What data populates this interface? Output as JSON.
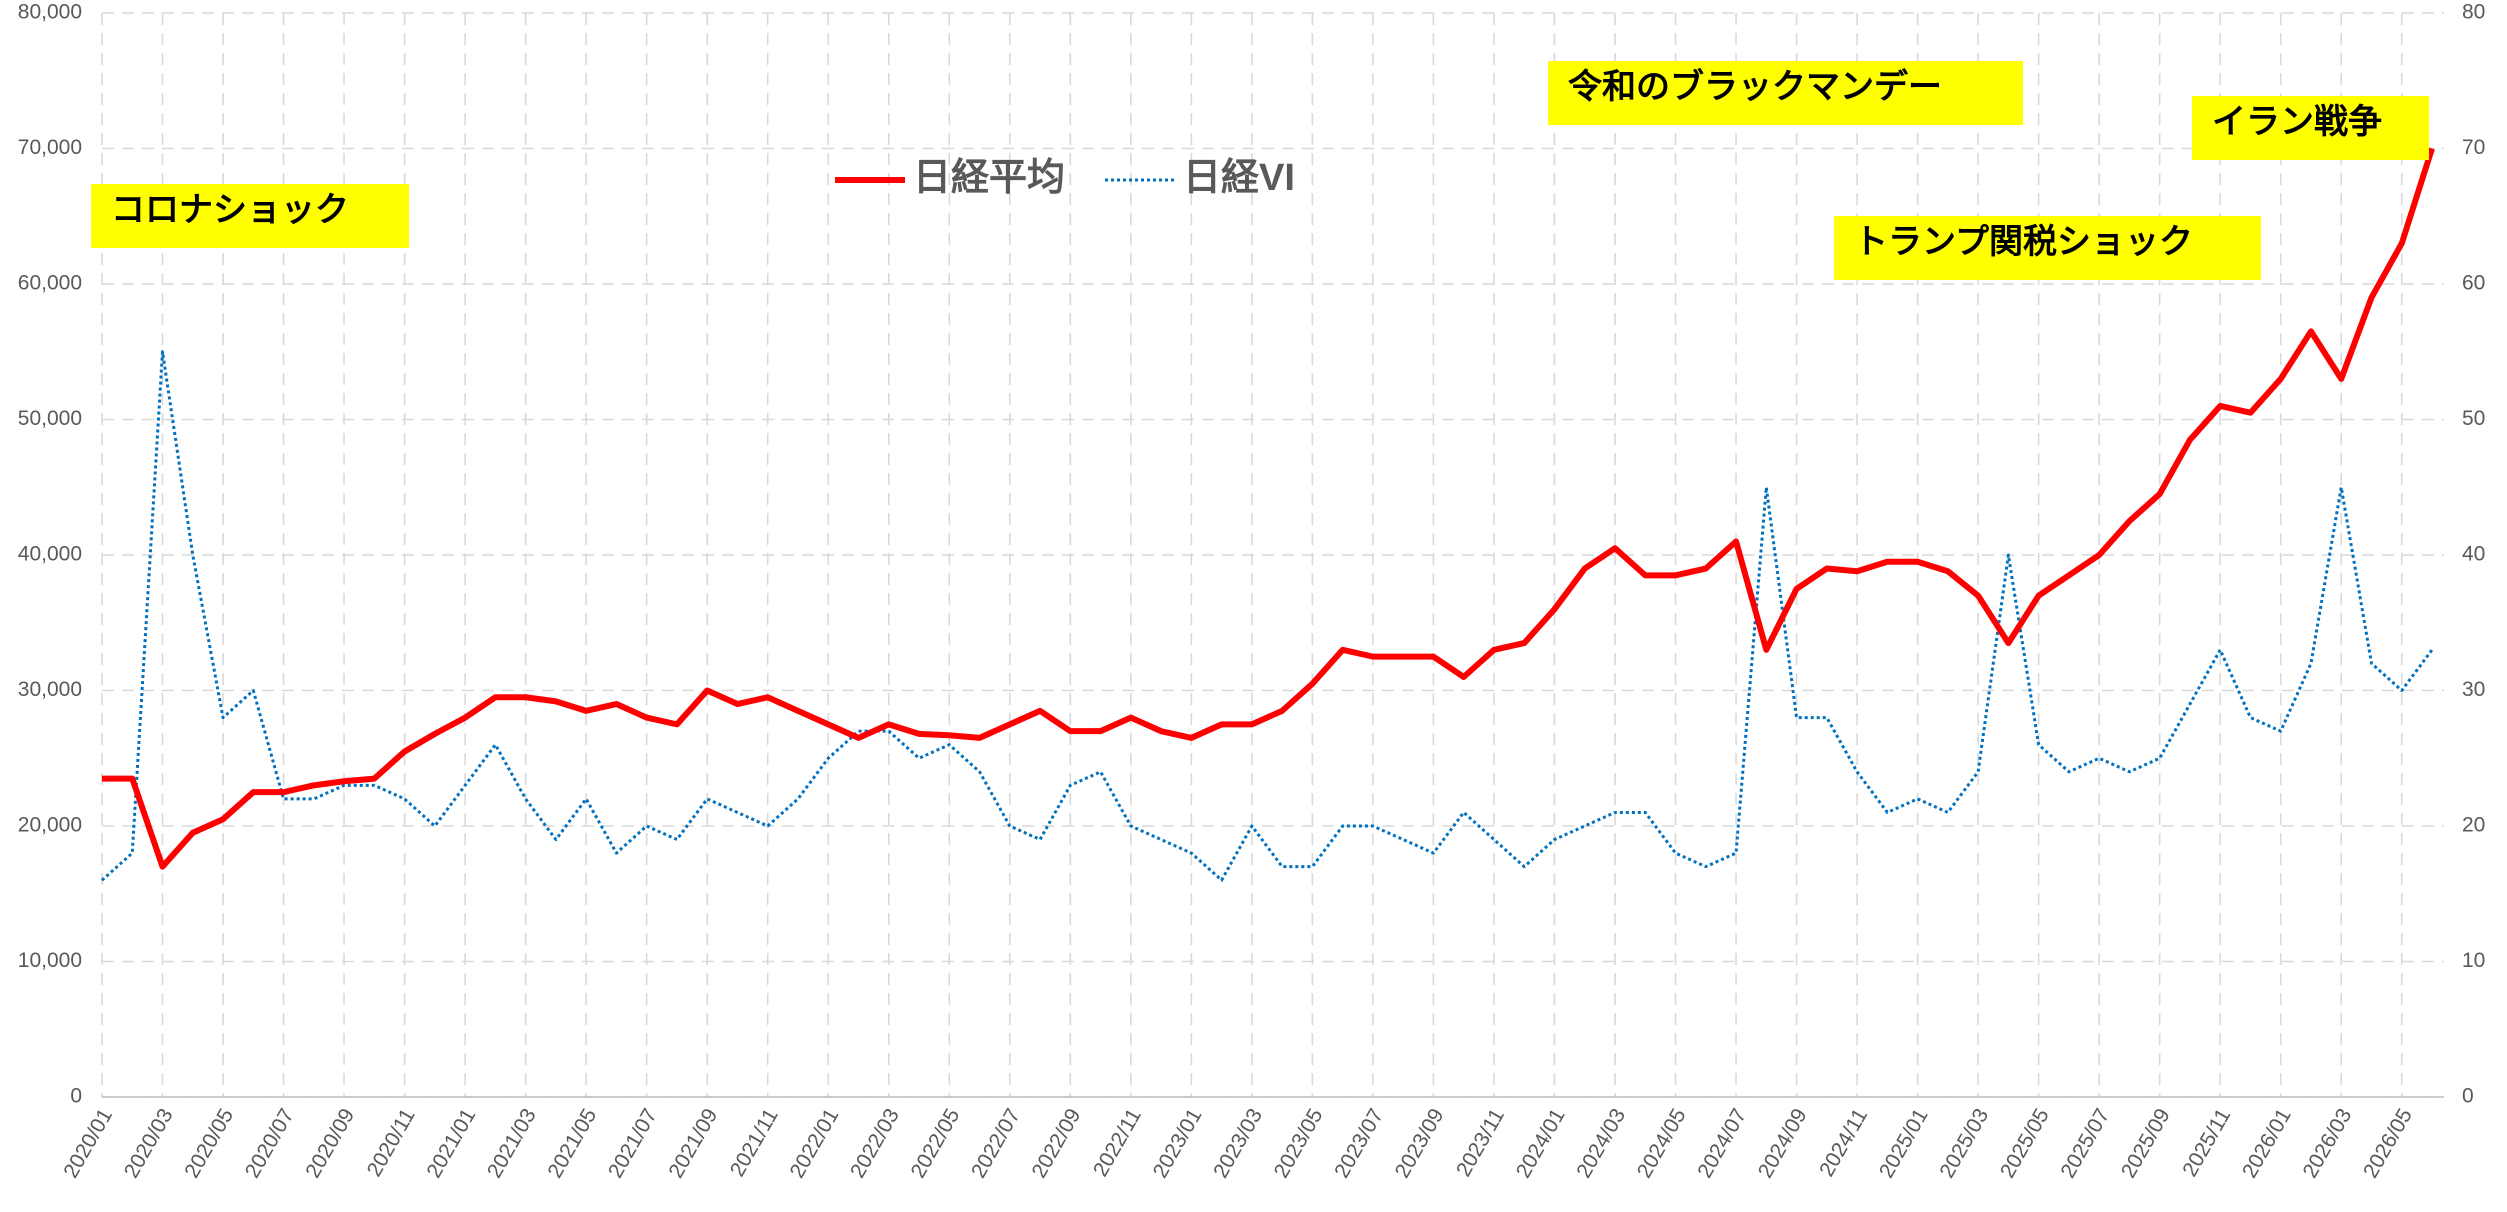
{
  "chart_data": {
    "type": "line",
    "categories": [
      "2020/01",
      null,
      "2020/03",
      null,
      "2020/05",
      null,
      "2020/07",
      null,
      "2020/09",
      null,
      "2020/11",
      null,
      "2021/01",
      null,
      "2021/03",
      null,
      "2021/05",
      null,
      "2021/07",
      null,
      "2021/09",
      null,
      "2021/11",
      null,
      "2022/01",
      null,
      "2022/03",
      null,
      "2022/05",
      null,
      "2022/07",
      null,
      "2022/09",
      null,
      "2022/11",
      null,
      "2023/01",
      null,
      "2023/03",
      null,
      "2023/05",
      null,
      "2023/07",
      null,
      "2023/09",
      null,
      "2023/11",
      null,
      "2024/01",
      null,
      "2024/03",
      null,
      "2024/05",
      null,
      "2024/07",
      null,
      "2024/09",
      null,
      "2024/11",
      null,
      "2025/01",
      null,
      "2025/03",
      null,
      "2025/05",
      null,
      "2025/07",
      null,
      "2025/09",
      null,
      "2025/11",
      null,
      "2026/01",
      null,
      "2026/03",
      null,
      "2026/05",
      null
    ],
    "series": [
      {
        "name": "日経平均",
        "color": "#ff0000",
        "values": [
          23500,
          23500,
          17000,
          19500,
          20500,
          22500,
          22500,
          23000,
          23300,
          23500,
          25500,
          26800,
          28000,
          29500,
          29500,
          29200,
          28500,
          29000,
          28000,
          27500,
          30000,
          29000,
          29500,
          28500,
          27500,
          26500,
          27500,
          26800,
          26700,
          26500,
          27500,
          28500,
          27000,
          27000,
          28000,
          27000,
          26500,
          27500,
          27500,
          28500,
          30500,
          33000,
          32500,
          32500,
          32500,
          31000,
          33000,
          33500,
          36000,
          39000,
          40500,
          38500,
          38500,
          39000,
          41000,
          33000,
          37500,
          39000,
          38800,
          39500,
          39500,
          38800,
          37000,
          33500,
          37000,
          38500,
          40000,
          42500,
          44500,
          48500,
          51000,
          50500,
          53000,
          56500,
          53000,
          59000,
          63000,
          70000
        ]
      },
      {
        "name": "日経VI",
        "color": "#0070c0",
        "axis": "y2",
        "values": [
          16,
          18,
          55,
          40,
          28,
          30,
          22,
          22,
          23,
          23,
          22,
          20,
          23,
          26,
          22,
          19,
          22,
          18,
          20,
          19,
          22,
          21,
          20,
          22,
          25,
          27,
          27,
          25,
          26,
          24,
          20,
          19,
          23,
          24,
          20,
          19,
          18,
          16,
          20,
          17,
          17,
          20,
          20,
          19,
          18,
          21,
          19,
          17,
          19,
          20,
          21,
          21,
          18,
          17,
          18,
          45,
          28,
          28,
          24,
          21,
          22,
          21,
          24,
          40,
          26,
          24,
          25,
          24,
          25,
          29,
          33,
          28,
          27,
          32,
          45,
          32,
          30,
          33
        ]
      }
    ],
    "ylim": [
      0,
      80000
    ],
    "yticks": [
      0,
      {
        "value": 10000,
        "label": "10,000"
      },
      {
        "value": 20000,
        "label": "20,000"
      },
      {
        "value": 30000,
        "label": "30,000"
      },
      {
        "value": 40000,
        "label": "40,000"
      },
      {
        "value": 50000,
        "label": "50,000"
      },
      {
        "value": 60000,
        "label": "60,000"
      },
      {
        "value": 70000,
        "label": "70,000"
      },
      {
        "value": 80000,
        "label": "80,000"
      }
    ],
    "y2lim": [
      0,
      80
    ],
    "y2ticks": [
      0,
      10,
      20,
      30,
      40,
      50,
      60,
      70,
      80
    ],
    "grid": true,
    "legend": "top",
    "annotations": [
      "コロナショック",
      "令和のブラックマンデー",
      "トランプ関税ショック",
      "イラン戦争"
    ]
  }
}
